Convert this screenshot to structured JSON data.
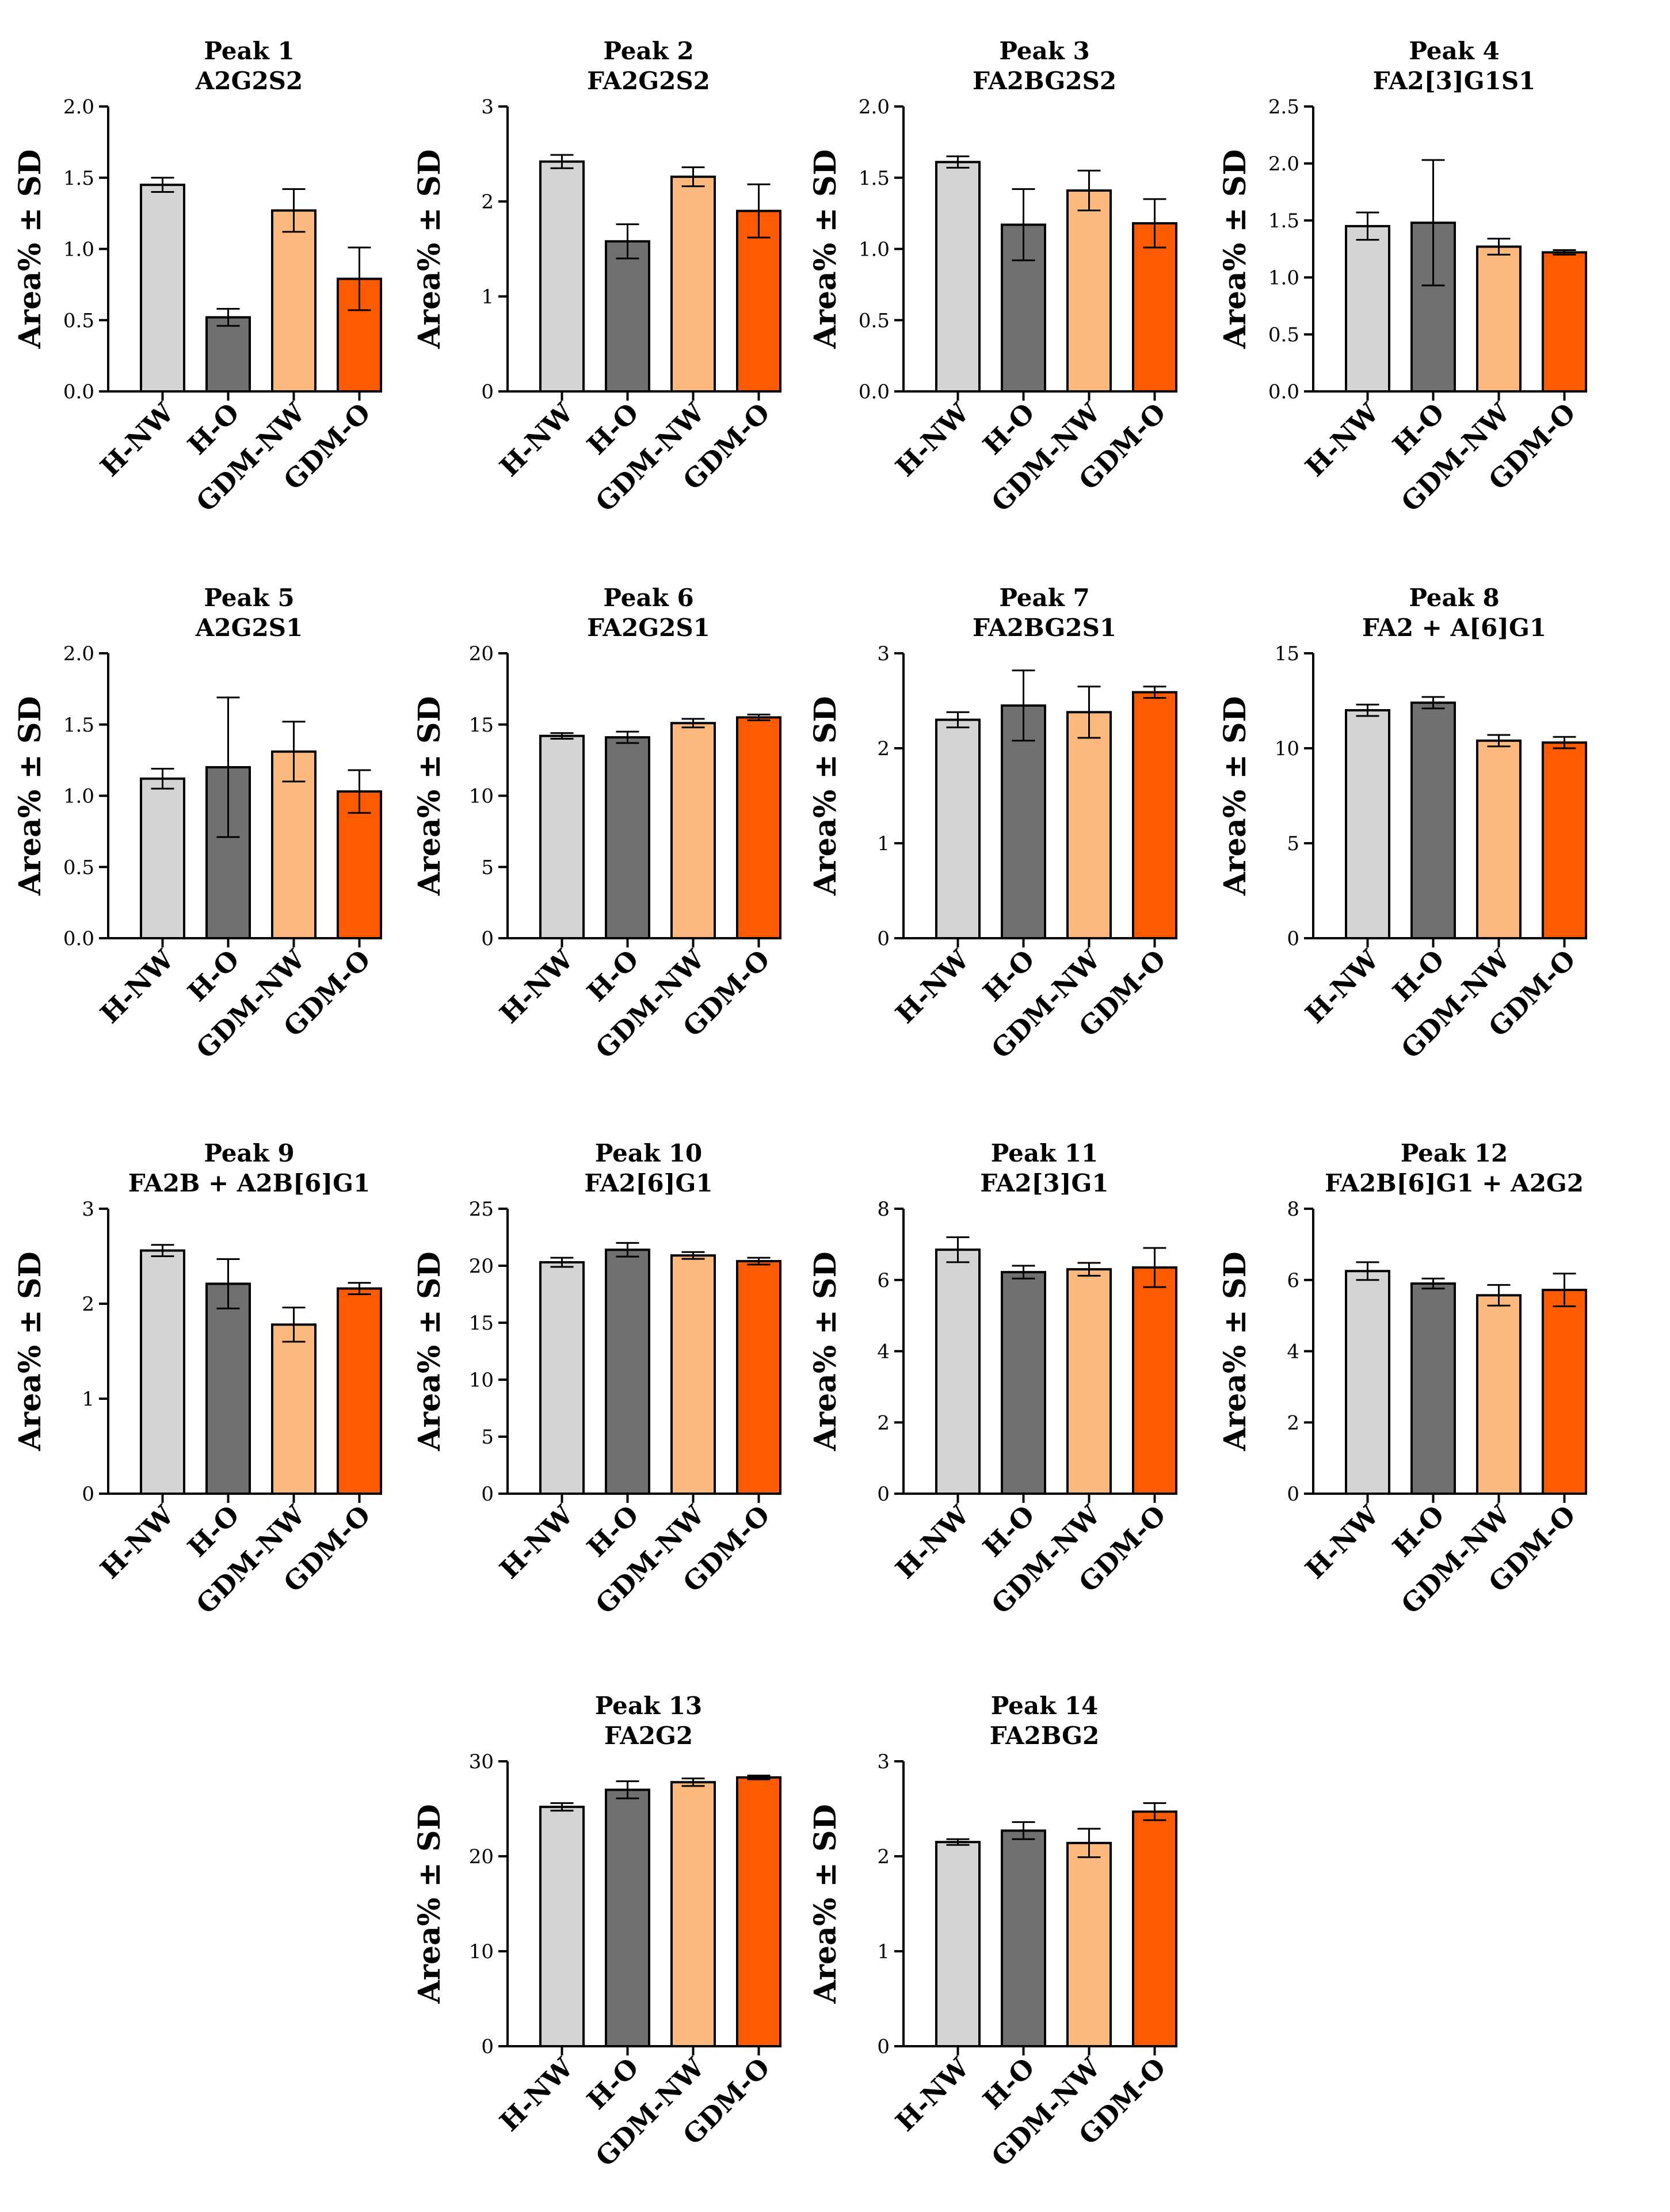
{
  "figure": {
    "y_axis_label": "Area% ± SD"
  },
  "groups": [
    {
      "name": "H-NW",
      "color": "#d4d4d4"
    },
    {
      "name": "H-O",
      "color": "#707070"
    },
    {
      "name": "GDM-NW",
      "color": "#fcb87d"
    },
    {
      "name": "GDM-O",
      "color": "#fe5b00"
    }
  ],
  "chart_data": [
    {
      "type": "bar",
      "title": "Peak 1",
      "subtitle": "A2G2S2",
      "ylabel": "Area% ± SD",
      "categories": [
        "H-NW",
        "H-O",
        "GDM-NW",
        "GDM-O"
      ],
      "values": [
        1.45,
        0.52,
        1.27,
        0.79
      ],
      "errors": [
        0.05,
        0.06,
        0.15,
        0.22
      ],
      "ylim": [
        0,
        2.0
      ],
      "yticks": [
        "0.0",
        "0.5",
        "1.0",
        "1.5",
        "2.0"
      ]
    },
    {
      "type": "bar",
      "title": "Peak 2",
      "subtitle": "FA2G2S2",
      "ylabel": "Area% ± SD",
      "categories": [
        "H-NW",
        "H-O",
        "GDM-NW",
        "GDM-O"
      ],
      "values": [
        2.42,
        1.58,
        2.26,
        1.9
      ],
      "errors": [
        0.07,
        0.18,
        0.1,
        0.28
      ],
      "ylim": [
        0,
        3
      ],
      "yticks": [
        "0",
        "1",
        "2",
        "3"
      ]
    },
    {
      "type": "bar",
      "title": "Peak 3",
      "subtitle": "FA2BG2S2",
      "ylabel": "Area% ± SD",
      "categories": [
        "H-NW",
        "H-O",
        "GDM-NW",
        "GDM-O"
      ],
      "values": [
        1.61,
        1.17,
        1.41,
        1.18
      ],
      "errors": [
        0.04,
        0.25,
        0.14,
        0.17
      ],
      "ylim": [
        0,
        2.0
      ],
      "yticks": [
        "0.0",
        "0.5",
        "1.0",
        "1.5",
        "2.0"
      ]
    },
    {
      "type": "bar",
      "title": "Peak 4",
      "subtitle": "FA2[3]G1S1",
      "ylabel": "Area% ± SD",
      "categories": [
        "H-NW",
        "H-O",
        "GDM-NW",
        "GDM-O"
      ],
      "values": [
        1.45,
        1.48,
        1.27,
        1.22
      ],
      "errors": [
        0.12,
        0.55,
        0.07,
        0.02
      ],
      "ylim": [
        0,
        2.5
      ],
      "yticks": [
        "0.0",
        "0.5",
        "1.0",
        "1.5",
        "2.0",
        "2.5"
      ]
    },
    {
      "type": "bar",
      "title": "Peak 5",
      "subtitle": "A2G2S1",
      "ylabel": "Area% ± SD",
      "categories": [
        "H-NW",
        "H-O",
        "GDM-NW",
        "GDM-O"
      ],
      "values": [
        1.12,
        1.2,
        1.31,
        1.03
      ],
      "errors": [
        0.07,
        0.49,
        0.21,
        0.15
      ],
      "ylim": [
        0,
        2.0
      ],
      "yticks": [
        "0.0",
        "0.5",
        "1.0",
        "1.5",
        "2.0"
      ]
    },
    {
      "type": "bar",
      "title": "Peak 6",
      "subtitle": "FA2G2S1",
      "ylabel": "Area% ± SD",
      "categories": [
        "H-NW",
        "H-O",
        "GDM-NW",
        "GDM-O"
      ],
      "values": [
        14.2,
        14.1,
        15.1,
        15.5
      ],
      "errors": [
        0.2,
        0.4,
        0.3,
        0.2
      ],
      "ylim": [
        0,
        20
      ],
      "yticks": [
        "0",
        "5",
        "10",
        "15",
        "20"
      ]
    },
    {
      "type": "bar",
      "title": "Peak 7",
      "subtitle": "FA2BG2S1",
      "ylabel": "Area% ± SD",
      "categories": [
        "H-NW",
        "H-O",
        "GDM-NW",
        "GDM-O"
      ],
      "values": [
        2.3,
        2.45,
        2.38,
        2.59
      ],
      "errors": [
        0.08,
        0.37,
        0.27,
        0.06
      ],
      "ylim": [
        0,
        3
      ],
      "yticks": [
        "0",
        "1",
        "2",
        "3"
      ]
    },
    {
      "type": "bar",
      "title": "Peak 8",
      "subtitle": "FA2 + A[6]G1",
      "ylabel": "Area% ± SD",
      "categories": [
        "H-NW",
        "H-O",
        "GDM-NW",
        "GDM-O"
      ],
      "values": [
        12.0,
        12.4,
        10.4,
        10.3
      ],
      "errors": [
        0.3,
        0.3,
        0.3,
        0.3
      ],
      "ylim": [
        0,
        15
      ],
      "yticks": [
        "0",
        "5",
        "10",
        "15"
      ]
    },
    {
      "type": "bar",
      "title": "Peak 9",
      "subtitle": "FA2B + A2B[6]G1",
      "ylabel": "Area% ± SD",
      "categories": [
        "H-NW",
        "H-O",
        "GDM-NW",
        "GDM-O"
      ],
      "values": [
        2.56,
        2.21,
        1.78,
        2.16
      ],
      "errors": [
        0.06,
        0.26,
        0.18,
        0.06
      ],
      "ylim": [
        0,
        3
      ],
      "yticks": [
        "0",
        "1",
        "2",
        "3"
      ]
    },
    {
      "type": "bar",
      "title": "Peak 10",
      "subtitle": "FA2[6]G1",
      "ylabel": "Area% ± SD",
      "categories": [
        "H-NW",
        "H-O",
        "GDM-NW",
        "GDM-O"
      ],
      "values": [
        20.3,
        21.4,
        20.9,
        20.4
      ],
      "errors": [
        0.4,
        0.6,
        0.3,
        0.3
      ],
      "ylim": [
        0,
        25
      ],
      "yticks": [
        "0",
        "5",
        "10",
        "15",
        "20",
        "25"
      ]
    },
    {
      "type": "bar",
      "title": "Peak 11",
      "subtitle": "FA2[3]G1",
      "ylabel": "Area% ± SD",
      "categories": [
        "H-NW",
        "H-O",
        "GDM-NW",
        "GDM-O"
      ],
      "values": [
        6.85,
        6.22,
        6.3,
        6.35
      ],
      "errors": [
        0.35,
        0.18,
        0.18,
        0.55
      ],
      "ylim": [
        0,
        8
      ],
      "yticks": [
        "0",
        "2",
        "4",
        "6",
        "8"
      ]
    },
    {
      "type": "bar",
      "title": "Peak 12",
      "subtitle": "FA2B[6]G1 + A2G2",
      "ylabel": "Area% ± SD",
      "categories": [
        "H-NW",
        "H-O",
        "GDM-NW",
        "GDM-O"
      ],
      "values": [
        6.25,
        5.9,
        5.57,
        5.72
      ],
      "errors": [
        0.25,
        0.14,
        0.29,
        0.46
      ],
      "ylim": [
        0,
        8
      ],
      "yticks": [
        "0",
        "2",
        "4",
        "6",
        "8"
      ]
    },
    {
      "type": "bar",
      "title": "Peak 13",
      "subtitle": "FA2G2",
      "ylabel": "Area% ± SD",
      "categories": [
        "H-NW",
        "H-O",
        "GDM-NW",
        "GDM-O"
      ],
      "values": [
        25.2,
        27.0,
        27.8,
        28.3
      ],
      "errors": [
        0.4,
        0.9,
        0.4,
        0.2
      ],
      "ylim": [
        0,
        30
      ],
      "yticks": [
        "0",
        "10",
        "20",
        "30"
      ]
    },
    {
      "type": "bar",
      "title": "Peak 14",
      "subtitle": "FA2BG2",
      "ylabel": "Area% ± SD",
      "categories": [
        "H-NW",
        "H-O",
        "GDM-NW",
        "GDM-O"
      ],
      "values": [
        2.15,
        2.27,
        2.14,
        2.47
      ],
      "errors": [
        0.03,
        0.09,
        0.15,
        0.09
      ],
      "ylim": [
        0,
        3
      ],
      "yticks": [
        "0",
        "1",
        "2",
        "3"
      ]
    }
  ]
}
